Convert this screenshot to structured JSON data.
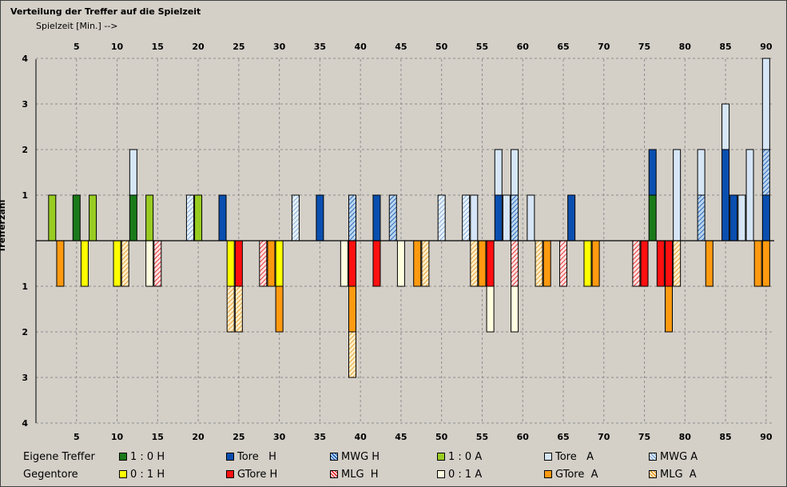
{
  "title": "Verteilung der Treffer auf die Spielzeit",
  "subtitle": "Spielzeit [Min.]  -->",
  "chart_data": {
    "type": "bar",
    "ylabel": "Trefferzahl",
    "x_ticks": [
      5,
      10,
      15,
      20,
      25,
      30,
      35,
      40,
      45,
      50,
      55,
      60,
      65,
      70,
      75,
      80,
      85,
      90
    ],
    "xlim": [
      0,
      91
    ],
    "y_ticks_upper": [
      1,
      2,
      3,
      4
    ],
    "y_ticks_lower": [
      1,
      2,
      3,
      4
    ],
    "upper_series": [
      "1 : 0 H",
      "Tore   H",
      "MWG H",
      "1 : 0 A",
      "Tore   A",
      "MWG A"
    ],
    "lower_series": [
      "0 : 1 H",
      "GTore H",
      "MLG  H",
      "0 : 1 A",
      "GTore  A",
      "MLG  A"
    ],
    "upper_bars": [
      {
        "minute": 2,
        "segments": [
          {
            "series": "1 : 0 A",
            "value": 1
          }
        ]
      },
      {
        "minute": 5,
        "segments": [
          {
            "series": "1 : 0 H",
            "value": 1
          }
        ]
      },
      {
        "minute": 7,
        "segments": [
          {
            "series": "1 : 0 A",
            "value": 1
          }
        ]
      },
      {
        "minute": 12,
        "segments": [
          {
            "series": "1 : 0 H",
            "value": 1
          },
          {
            "series": "Tore   A",
            "value": 1
          }
        ]
      },
      {
        "minute": 14,
        "segments": [
          {
            "series": "1 : 0 A",
            "value": 1
          }
        ]
      },
      {
        "minute": 19,
        "segments": [
          {
            "series": "MWG A",
            "value": 1
          }
        ]
      },
      {
        "minute": 20,
        "segments": [
          {
            "series": "1 : 0 A",
            "value": 1
          }
        ]
      },
      {
        "minute": 23,
        "segments": [
          {
            "series": "Tore   H",
            "value": 1
          }
        ]
      },
      {
        "minute": 32,
        "segments": [
          {
            "series": "MWG A",
            "value": 1
          }
        ]
      },
      {
        "minute": 35,
        "segments": [
          {
            "series": "Tore   H",
            "value": 1
          }
        ]
      },
      {
        "minute": 39,
        "segments": [
          {
            "series": "MWG H",
            "value": 1
          }
        ]
      },
      {
        "minute": 42,
        "segments": [
          {
            "series": "Tore   H",
            "value": 1
          }
        ]
      },
      {
        "minute": 44,
        "segments": [
          {
            "series": "MWG H",
            "value": 1
          }
        ]
      },
      {
        "minute": 50,
        "segments": [
          {
            "series": "MWG A",
            "value": 1
          }
        ]
      },
      {
        "minute": 53,
        "segments": [
          {
            "series": "MWG A",
            "value": 1
          }
        ]
      },
      {
        "minute": 54,
        "segments": [
          {
            "series": "Tore   A",
            "value": 1
          }
        ]
      },
      {
        "minute": 57,
        "segments": [
          {
            "series": "Tore   H",
            "value": 1
          },
          {
            "series": "Tore   A",
            "value": 1
          }
        ]
      },
      {
        "minute": 58,
        "segments": [
          {
            "series": "Tore   A",
            "value": 1
          }
        ]
      },
      {
        "minute": 59,
        "segments": [
          {
            "series": "MWG H",
            "value": 1
          },
          {
            "series": "Tore   A",
            "value": 1
          }
        ]
      },
      {
        "minute": 61,
        "segments": [
          {
            "series": "Tore   A",
            "value": 1
          }
        ]
      },
      {
        "minute": 66,
        "segments": [
          {
            "series": "Tore   H",
            "value": 1
          }
        ]
      },
      {
        "minute": 76,
        "segments": [
          {
            "series": "1 : 0 H",
            "value": 1
          },
          {
            "series": "Tore   H",
            "value": 1
          }
        ]
      },
      {
        "minute": 79,
        "segments": [
          {
            "series": "Tore   A",
            "value": 2
          }
        ]
      },
      {
        "minute": 82,
        "segments": [
          {
            "series": "MWG H",
            "value": 1
          },
          {
            "series": "Tore   A",
            "value": 1
          }
        ]
      },
      {
        "minute": 85,
        "segments": [
          {
            "series": "Tore   H",
            "value": 2
          },
          {
            "series": "Tore   A",
            "value": 1
          }
        ]
      },
      {
        "minute": 86,
        "segments": [
          {
            "series": "Tore   H",
            "value": 1
          }
        ]
      },
      {
        "minute": 87,
        "segments": [
          {
            "series": "Tore   A",
            "value": 1
          }
        ]
      },
      {
        "minute": 88,
        "segments": [
          {
            "series": "Tore   A",
            "value": 2
          }
        ]
      },
      {
        "minute": 90,
        "segments": [
          {
            "series": "Tore   H",
            "value": 1
          },
          {
            "series": "MWG H",
            "value": 1
          },
          {
            "series": "Tore   A",
            "value": 2
          }
        ]
      }
    ],
    "lower_bars": [
      {
        "minute": 3,
        "segments": [
          {
            "series": "GTore  A",
            "value": 1
          }
        ]
      },
      {
        "minute": 6,
        "segments": [
          {
            "series": "0 : 1 H",
            "value": 1
          }
        ]
      },
      {
        "minute": 10,
        "segments": [
          {
            "series": "0 : 1 H",
            "value": 1
          }
        ]
      },
      {
        "minute": 11,
        "segments": [
          {
            "series": "MLG  A",
            "value": 1
          }
        ]
      },
      {
        "minute": 14,
        "segments": [
          {
            "series": "0 : 1 A",
            "value": 1
          }
        ]
      },
      {
        "minute": 15,
        "segments": [
          {
            "series": "MLG  H",
            "value": 1
          }
        ]
      },
      {
        "minute": 24,
        "segments": [
          {
            "series": "0 : 1 H",
            "value": 1
          },
          {
            "series": "MLG  A",
            "value": 1
          }
        ]
      },
      {
        "minute": 25,
        "segments": [
          {
            "series": "GTore H",
            "value": 1
          },
          {
            "series": "MLG  A",
            "value": 1
          }
        ]
      },
      {
        "minute": 28,
        "segments": [
          {
            "series": "MLG  H",
            "value": 1
          }
        ]
      },
      {
        "minute": 29,
        "segments": [
          {
            "series": "GTore  A",
            "value": 1
          }
        ]
      },
      {
        "minute": 30,
        "segments": [
          {
            "series": "0 : 1 H",
            "value": 1
          },
          {
            "series": "GTore  A",
            "value": 1
          }
        ]
      },
      {
        "minute": 38,
        "segments": [
          {
            "series": "0 : 1 A",
            "value": 1
          }
        ]
      },
      {
        "minute": 39,
        "segments": [
          {
            "series": "GTore H",
            "value": 1
          },
          {
            "series": "GTore  A",
            "value": 1
          },
          {
            "series": "MLG  A",
            "value": 1
          }
        ]
      },
      {
        "minute": 42,
        "segments": [
          {
            "series": "GTore H",
            "value": 1
          }
        ]
      },
      {
        "minute": 45,
        "segments": [
          {
            "series": "0 : 1 A",
            "value": 1
          }
        ]
      },
      {
        "minute": 47,
        "segments": [
          {
            "series": "GTore  A",
            "value": 1
          }
        ]
      },
      {
        "minute": 48,
        "segments": [
          {
            "series": "MLG  A",
            "value": 1
          }
        ]
      },
      {
        "minute": 54,
        "segments": [
          {
            "series": "MLG  A",
            "value": 1
          }
        ]
      },
      {
        "minute": 55,
        "segments": [
          {
            "series": "GTore  A",
            "value": 1
          }
        ]
      },
      {
        "minute": 56,
        "segments": [
          {
            "series": "GTore H",
            "value": 1
          },
          {
            "series": "0 : 1 A",
            "value": 1
          }
        ]
      },
      {
        "minute": 59,
        "segments": [
          {
            "series": "MLG  H",
            "value": 1
          },
          {
            "series": "0 : 1 A",
            "value": 1
          }
        ]
      },
      {
        "minute": 62,
        "segments": [
          {
            "series": "MLG  A",
            "value": 1
          }
        ]
      },
      {
        "minute": 63,
        "segments": [
          {
            "series": "GTore  A",
            "value": 1
          }
        ]
      },
      {
        "minute": 65,
        "segments": [
          {
            "series": "MLG  H",
            "value": 1
          }
        ]
      },
      {
        "minute": 68,
        "segments": [
          {
            "series": "0 : 1 H",
            "value": 1
          }
        ]
      },
      {
        "minute": 69,
        "segments": [
          {
            "series": "GTore  A",
            "value": 1
          }
        ]
      },
      {
        "minute": 74,
        "segments": [
          {
            "series": "MLG  H",
            "value": 1
          }
        ]
      },
      {
        "minute": 75,
        "segments": [
          {
            "series": "GTore H",
            "value": 1
          }
        ]
      },
      {
        "minute": 77,
        "segments": [
          {
            "series": "GTore H",
            "value": 1
          }
        ]
      },
      {
        "minute": 78,
        "segments": [
          {
            "series": "GTore H",
            "value": 1
          },
          {
            "series": "GTore  A",
            "value": 1
          }
        ]
      },
      {
        "minute": 79,
        "segments": [
          {
            "series": "MLG  A",
            "value": 1
          }
        ]
      },
      {
        "minute": 83,
        "segments": [
          {
            "series": "GTore  A",
            "value": 1
          }
        ]
      },
      {
        "minute": 89,
        "segments": [
          {
            "series": "GTore  A",
            "value": 1
          }
        ]
      },
      {
        "minute": 90,
        "segments": [
          {
            "series": "GTore  A",
            "value": 1
          }
        ]
      }
    ]
  },
  "legend": {
    "row1_label": "Eigene Treffer",
    "row2_label": "Gegentore",
    "row1": [
      {
        "label": "1 : 0 H",
        "series": "1 : 0 H"
      },
      {
        "label": "Tore   H",
        "series": "Tore   H"
      },
      {
        "label": "MWG H",
        "series": "MWG H"
      },
      {
        "label": "1 : 0 A",
        "series": "1 : 0 A"
      },
      {
        "label": "Tore   A",
        "series": "Tore   A"
      },
      {
        "label": "MWG A",
        "series": "MWG A"
      }
    ],
    "row2": [
      {
        "label": "0 : 1 H",
        "series": "0 : 1 H"
      },
      {
        "label": "GTore H",
        "series": "GTore H"
      },
      {
        "label": "MLG  H",
        "series": "MLG  H"
      },
      {
        "label": "0 : 1 A",
        "series": "0 : 1 A"
      },
      {
        "label": "GTore  A",
        "series": "GTore  A"
      },
      {
        "label": "MLG  A",
        "series": "MLG  A"
      }
    ]
  },
  "series_styles": {
    "1 : 0 H": {
      "fill": "#1a7a1a",
      "pattern": "solid"
    },
    "Tore   H": {
      "fill": "#0a4fb0",
      "pattern": "solid"
    },
    "MWG H": {
      "fill": "#bcd6ee",
      "pattern": "hatch",
      "hatch": "#0a4fb0"
    },
    "1 : 0 A": {
      "fill": "#99cc22",
      "pattern": "solid"
    },
    "Tore   A": {
      "fill": "#d6e6f6",
      "pattern": "solid"
    },
    "MWG A": {
      "fill": "#e8f1fb",
      "pattern": "hatch",
      "hatch": "#6f9fcf"
    },
    "0 : 1 H": {
      "fill": "#ffff00",
      "pattern": "solid"
    },
    "GTore H": {
      "fill": "#ff1010",
      "pattern": "solid"
    },
    "MLG  H": {
      "fill": "#ffe0e0",
      "pattern": "hatch",
      "hatch": "#e01010"
    },
    "0 : 1 A": {
      "fill": "#ffffe0",
      "pattern": "solid"
    },
    "GTore  A": {
      "fill": "#ff9a10",
      "pattern": "solid"
    },
    "MLG  A": {
      "fill": "#ffeec8",
      "pattern": "hatch",
      "hatch": "#e0901a"
    }
  }
}
